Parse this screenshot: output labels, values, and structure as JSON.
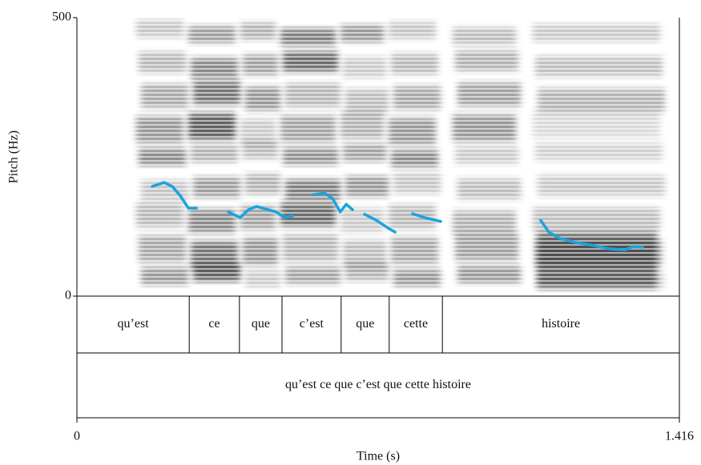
{
  "chart_data": {
    "type": "line",
    "xlabel": "Time (s)",
    "ylabel": "Pitch (Hz)",
    "xlim": [
      0,
      1.416
    ],
    "xticks": [
      0,
      1.416
    ],
    "ylim": [
      0,
      500
    ],
    "yticks": [
      0,
      500
    ],
    "color": "#1ba3dd",
    "x": [
      0.177,
      0.205,
      0.224,
      0.243,
      0.262,
      0.281,
      null,
      0.356,
      0.384,
      0.403,
      0.422,
      0.45,
      0.469,
      0.488,
      0.507,
      null,
      0.557,
      0.582,
      0.601,
      0.619,
      0.633,
      0.648,
      null,
      0.676,
      0.704,
      0.732,
      0.748,
      null,
      0.789,
      0.817,
      0.855,
      null,
      1.09,
      1.109,
      1.137,
      1.175,
      1.213,
      1.25,
      1.288,
      1.307,
      1.33
    ],
    "values": [
      197,
      204,
      197,
      180,
      158,
      158,
      null,
      151,
      141,
      155,
      161,
      155,
      151,
      141,
      144,
      null,
      182,
      185,
      175,
      151,
      165,
      155,
      null,
      147,
      136,
      122,
      115,
      null,
      148,
      141,
      134,
      null,
      136,
      115,
      103,
      96,
      91,
      85,
      83,
      89,
      88
    ],
    "tiers": [
      {
        "intervals": [
          {
            "xmin": 0,
            "xmax": 0.264,
            "text": "qu’est"
          },
          {
            "xmin": 0.264,
            "xmax": 0.382,
            "text": "ce"
          },
          {
            "xmin": 0.382,
            "xmax": 0.482,
            "text": "que"
          },
          {
            "xmin": 0.482,
            "xmax": 0.621,
            "text": "c’est"
          },
          {
            "xmin": 0.621,
            "xmax": 0.734,
            "text": "que"
          },
          {
            "xmin": 0.734,
            "xmax": 0.859,
            "text": "cette"
          },
          {
            "xmin": 0.859,
            "xmax": 1.416,
            "text": "histoire"
          }
        ]
      },
      {
        "intervals": [
          {
            "xmin": 0,
            "xmax": 1.416,
            "text": "qu’est ce que c’est que cette histoire"
          }
        ]
      }
    ]
  }
}
